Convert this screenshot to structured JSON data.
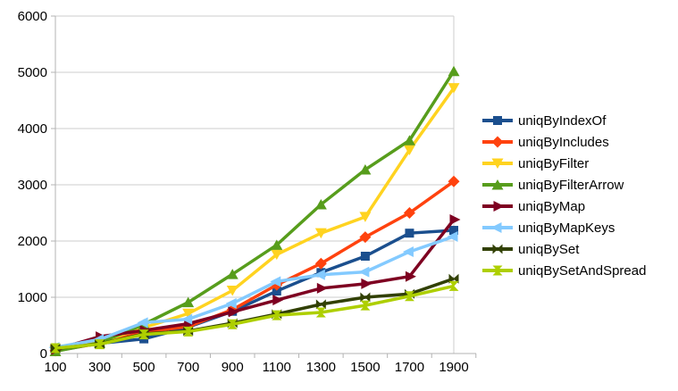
{
  "chart_data": {
    "type": "line",
    "title": "",
    "xlabel": "",
    "ylabel": "",
    "x_categories": [
      "100",
      "300",
      "500",
      "700",
      "900",
      "1100",
      "1300",
      "1500",
      "1700",
      "1900"
    ],
    "ylim": [
      0,
      6000
    ],
    "y_ticks": [
      0,
      1000,
      2000,
      3000,
      4000,
      5000,
      6000
    ],
    "grid": "horizontal",
    "legend_position": "right",
    "style": {
      "background": "#ffffff",
      "axis_color": "#b3b3b3",
      "grid_color": "#cccccc",
      "tick_label_color": "#000000"
    },
    "series": [
      {
        "name": "uniqByIndexOf",
        "color": "#1b4f8e",
        "marker": "square",
        "values": [
          60,
          180,
          260,
          470,
          750,
          1110,
          1440,
          1730,
          2140,
          2190
        ]
      },
      {
        "name": "uniqByIncludes",
        "color": "#ff420e",
        "marker": "diamond",
        "values": [
          50,
          180,
          380,
          480,
          780,
          1220,
          1600,
          2070,
          2500,
          3060
        ]
      },
      {
        "name": "uniqByFilter",
        "color": "#ffd320",
        "marker": "triangle-down",
        "values": [
          60,
          200,
          460,
          710,
          1120,
          1760,
          2140,
          2430,
          3620,
          4720
        ]
      },
      {
        "name": "uniqByFilterArrow",
        "color": "#579d1c",
        "marker": "triangle-up",
        "values": [
          40,
          190,
          520,
          910,
          1410,
          1930,
          2650,
          3270,
          3790,
          5020
        ]
      },
      {
        "name": "uniqByMap",
        "color": "#7e0021",
        "marker": "arrow-right",
        "values": [
          70,
          300,
          410,
          530,
          740,
          950,
          1160,
          1240,
          1370,
          2380
        ]
      },
      {
        "name": "uniqByMapKeys",
        "color": "#83caff",
        "marker": "arrow-left",
        "values": [
          110,
          250,
          550,
          610,
          890,
          1280,
          1400,
          1450,
          1810,
          2080
        ]
      },
      {
        "name": "uniqBySet",
        "color": "#314004",
        "marker": "bowtie",
        "values": [
          90,
          170,
          350,
          400,
          540,
          700,
          875,
          1000,
          1060,
          1330
        ]
      },
      {
        "name": "uniqBySetAndSpread",
        "color": "#aecf00",
        "marker": "hourglass",
        "values": [
          95,
          165,
          340,
          390,
          520,
          680,
          730,
          855,
          1020,
          1200
        ]
      }
    ]
  }
}
